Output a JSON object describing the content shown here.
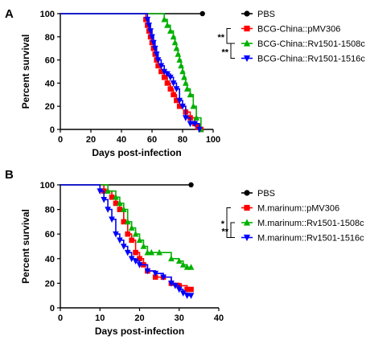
{
  "chart_data": [
    {
      "type": "line",
      "panel": "A",
      "xlabel": "Days post-infection",
      "ylabel": "Percent survival",
      "xlim": [
        0,
        100
      ],
      "ylim": [
        0,
        100
      ],
      "xticks": [
        0,
        20,
        40,
        60,
        80,
        100
      ],
      "yticks": [
        0,
        20,
        40,
        60,
        80,
        100
      ],
      "legend_position": "right",
      "significance": [
        {
          "label": "**",
          "from_series": 1,
          "to_series": 2
        },
        {
          "label": "**",
          "from_series": 2,
          "to_series": 3
        }
      ],
      "series": [
        {
          "name": "PBS",
          "color": "#000000",
          "marker": "circle",
          "x": [
            0,
            93
          ],
          "y": [
            100,
            100
          ]
        },
        {
          "name": "BCG-China::pMV306",
          "color": "#ff0000",
          "marker": "square",
          "x": [
            0,
            56,
            57,
            58,
            59,
            60,
            61,
            62,
            63,
            64,
            66,
            68,
            70,
            72,
            74,
            76,
            78,
            82,
            85,
            88,
            90,
            92
          ],
          "y": [
            100,
            95,
            90,
            85,
            80,
            75,
            70,
            65,
            60,
            55,
            50,
            45,
            40,
            35,
            30,
            25,
            20,
            15,
            10,
            5,
            2,
            0
          ]
        },
        {
          "name": "BCG-China::Rv1501-1508c",
          "color": "#00b000",
          "marker": "triangle-up",
          "x": [
            0,
            68,
            70,
            72,
            74,
            75,
            76,
            77,
            78,
            79,
            80,
            81,
            82,
            83,
            85,
            87,
            89,
            92
          ],
          "y": [
            100,
            95,
            90,
            85,
            80,
            75,
            70,
            65,
            60,
            55,
            50,
            45,
            40,
            35,
            30,
            20,
            10,
            0
          ]
        },
        {
          "name": "BCG-China::Rv1501-1516c",
          "color": "#0000ff",
          "marker": "triangle-down",
          "x": [
            0,
            57,
            58,
            59,
            60,
            61,
            62,
            63,
            64,
            66,
            68,
            70,
            72,
            74,
            76,
            78,
            80,
            82,
            85,
            88,
            91
          ],
          "y": [
            100,
            95,
            90,
            85,
            80,
            75,
            70,
            65,
            60,
            55,
            50,
            48,
            45,
            40,
            35,
            25,
            20,
            10,
            5,
            5,
            0
          ]
        }
      ]
    },
    {
      "type": "line",
      "panel": "B",
      "xlabel": "Days post-infection",
      "ylabel": "Percent survival",
      "xlim": [
        0,
        40
      ],
      "ylim": [
        0,
        100
      ],
      "xticks": [
        0,
        10,
        20,
        30,
        40
      ],
      "yticks": [
        0,
        20,
        40,
        60,
        80,
        100
      ],
      "legend_position": "right",
      "significance": [
        {
          "label": "*",
          "from_series": 1,
          "to_series": 3
        },
        {
          "label": "**",
          "from_series": 2,
          "to_series": 3
        }
      ],
      "series": [
        {
          "name": "PBS",
          "color": "#000000",
          "marker": "circle",
          "x": [
            0,
            33
          ],
          "y": [
            100,
            100
          ]
        },
        {
          "name": "M.marinum::pMV306",
          "color": "#ff0000",
          "marker": "square",
          "x": [
            0,
            11,
            13,
            14,
            15,
            16,
            17,
            18,
            19,
            20,
            21,
            22,
            24,
            26,
            28,
            30,
            32,
            33
          ],
          "y": [
            100,
            95,
            90,
            85,
            80,
            70,
            60,
            55,
            45,
            40,
            35,
            30,
            25,
            25,
            20,
            18,
            15,
            15
          ]
        },
        {
          "name": "M.marinum::Rv1501-1508c",
          "color": "#00b000",
          "marker": "triangle-up",
          "x": [
            0,
            12,
            14,
            15,
            16,
            17,
            18,
            19,
            20,
            21,
            22,
            23,
            25,
            28,
            30,
            31,
            32,
            33
          ],
          "y": [
            100,
            95,
            90,
            85,
            80,
            70,
            65,
            60,
            55,
            50,
            45,
            45,
            45,
            40,
            38,
            35,
            33,
            33
          ]
        },
        {
          "name": "M.marinum::Rv1501-1516c",
          "color": "#0000ff",
          "marker": "triangle-down",
          "x": [
            0,
            10,
            11,
            12,
            13,
            14,
            15,
            16,
            17,
            18,
            19,
            20,
            22,
            24,
            26,
            28,
            29,
            30,
            31,
            32,
            33
          ],
          "y": [
            100,
            95,
            88,
            80,
            72,
            60,
            55,
            50,
            45,
            40,
            38,
            35,
            30,
            28,
            25,
            20,
            18,
            15,
            12,
            10,
            10
          ]
        }
      ]
    }
  ]
}
